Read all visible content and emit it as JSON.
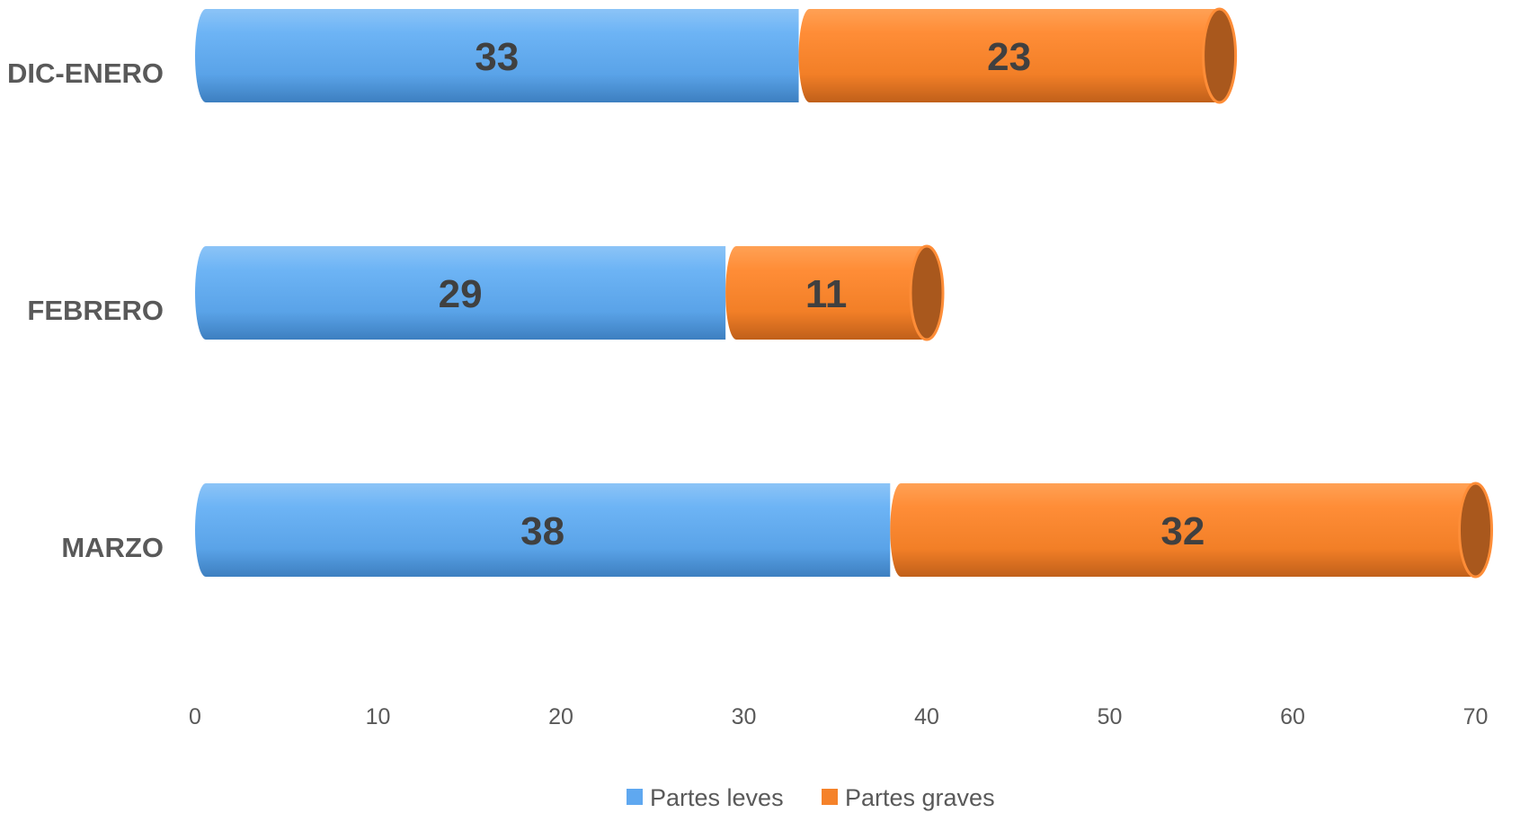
{
  "chart_data": {
    "type": "bar",
    "orientation": "horizontal",
    "stacked": true,
    "categories": [
      "DIC-ENERO",
      "FEBRERO",
      "MARZO"
    ],
    "series": [
      {
        "name": "Partes leves",
        "values": [
          33,
          29,
          38
        ],
        "color": "#5fa8f0"
      },
      {
        "name": "Partes graves",
        "values": [
          23,
          11,
          32
        ],
        "color": "#f5822a"
      }
    ],
    "xlim": [
      0,
      70
    ],
    "xticks": [
      0,
      10,
      20,
      30,
      40,
      50,
      60,
      70
    ],
    "grid": false,
    "legend": "bottom"
  }
}
